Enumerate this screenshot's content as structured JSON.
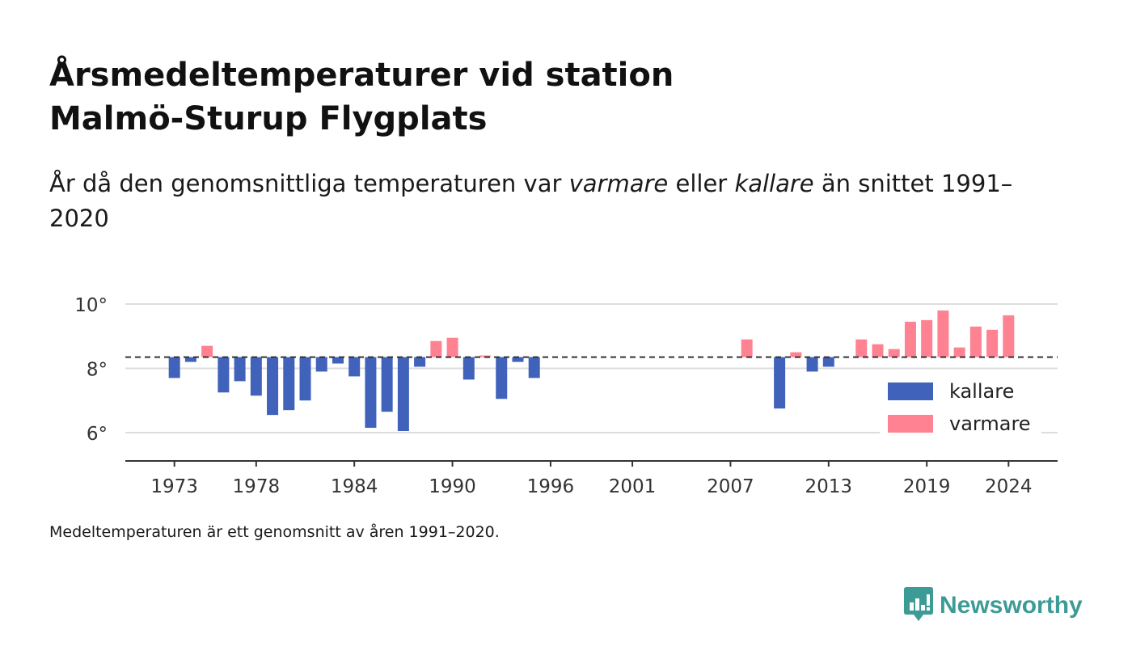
{
  "title_line1": "Årsmedeltemperaturer vid station",
  "title_line2": "Malmö-Sturup Flygplats",
  "subtitle": {
    "part1": "År då den genomsnittliga temperaturen var ",
    "em1": "varmare",
    "part2": " eller ",
    "em2": "kallare",
    "part3": " än snittet 1991–2020"
  },
  "note": "Medeltemperaturen är ett genomsnitt av åren 1991–2020.",
  "brand": {
    "name": "Newsworthy",
    "icon": "newsworthy-logo-icon",
    "color": "#3d9b95"
  },
  "chart_data": {
    "type": "bar",
    "baseline": 8.35,
    "ylim": [
      5,
      10.5
    ],
    "yticks": [
      6,
      8,
      10
    ],
    "ytick_labels": [
      "6°",
      "8°",
      "10°"
    ],
    "xticks": [
      1973,
      1978,
      1984,
      1990,
      1996,
      2001,
      2007,
      2013,
      2019,
      2024
    ],
    "xtick_labels": [
      "1973",
      "1978",
      "1984",
      "1990",
      "1996",
      "2001",
      "2007",
      "2013",
      "2019",
      "2024"
    ],
    "xlim": [
      1970,
      2027
    ],
    "grid": true,
    "legend_position": "bottom-right",
    "colors": {
      "kallare": "#4062bb",
      "varmare": "#fe8291",
      "baseline": "#333333",
      "grid": "#dddddd"
    },
    "series": [
      {
        "name": "kallare",
        "x": [
          1973,
          1974,
          1976,
          1977,
          1978,
          1979,
          1980,
          1981,
          1982,
          1983,
          1984,
          1985,
          1986,
          1987,
          1988,
          1991,
          1993,
          1994,
          1995,
          2010,
          2012,
          2013
        ],
        "values": [
          7.7,
          8.2,
          7.25,
          7.6,
          7.15,
          6.55,
          6.7,
          7.0,
          7.9,
          8.15,
          7.75,
          6.15,
          6.65,
          6.05,
          8.05,
          7.65,
          7.05,
          8.2,
          7.7,
          6.75,
          7.9,
          8.05
        ]
      },
      {
        "name": "varmare",
        "x": [
          1975,
          1989,
          1990,
          1992,
          2008,
          2011,
          2015,
          2016,
          2017,
          2018,
          2019,
          2020,
          2021,
          2022,
          2023,
          2024
        ],
        "values": [
          8.7,
          8.85,
          8.95,
          8.4,
          8.9,
          8.5,
          8.9,
          8.75,
          8.6,
          9.45,
          9.5,
          9.8,
          8.65,
          9.3,
          9.2,
          9.65
        ]
      }
    ]
  }
}
